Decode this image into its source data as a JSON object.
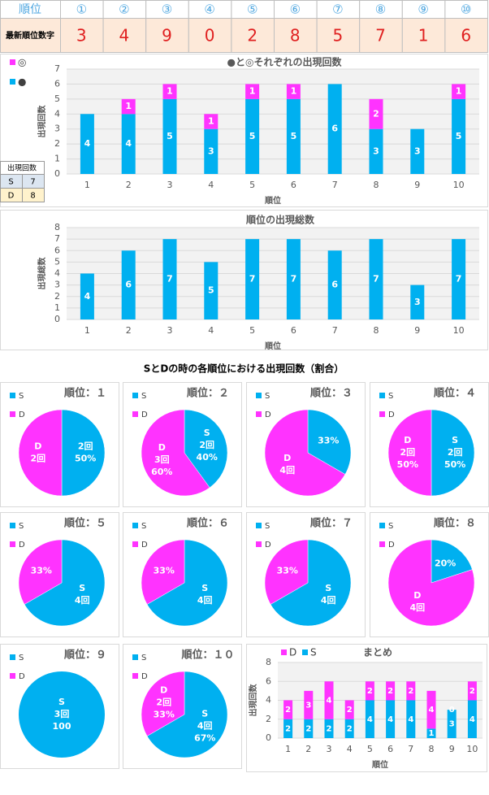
{
  "header": {
    "rank_label": "順位",
    "ranks": [
      "①",
      "②",
      "③",
      "④",
      "⑤",
      "⑥",
      "⑦",
      "⑧",
      "⑨",
      "⑩"
    ],
    "latest_label": "最新順位数字",
    "latest": [
      3,
      4,
      9,
      0,
      2,
      8,
      5,
      7,
      1,
      6
    ]
  },
  "count_table": {
    "title": "出現回数",
    "rows": [
      [
        "S",
        7
      ],
      [
        "D",
        8
      ]
    ]
  },
  "section_title": "SとDの時の各順位における出現回数（割合）",
  "chart_data": [
    {
      "type": "stacked_bar",
      "title": "●と◎それぞれの出現回数",
      "xlabel": "順位",
      "ylabel": "出現回数",
      "categories": [
        1,
        2,
        3,
        4,
        5,
        6,
        7,
        8,
        9,
        10
      ],
      "series": [
        {
          "name": "●",
          "color": "#00b0f0",
          "values": [
            4,
            4,
            5,
            3,
            5,
            5,
            6,
            3,
            3,
            5
          ]
        },
        {
          "name": "◎",
          "color": "#ff33ff",
          "values": [
            null,
            1,
            1,
            1,
            1,
            1,
            null,
            2,
            null,
            1
          ]
        }
      ],
      "ylim": [
        0,
        7
      ],
      "yticks": [
        0,
        1,
        2,
        3,
        4,
        5,
        6,
        7
      ],
      "grid": true,
      "legend": "left"
    },
    {
      "type": "bar",
      "title": "順位の出現総数",
      "xlabel": "順位",
      "ylabel": "出現総数",
      "categories": [
        1,
        2,
        3,
        4,
        5,
        6,
        7,
        8,
        9,
        10
      ],
      "color": "#00b0f0",
      "values": [
        4,
        6,
        7,
        5,
        7,
        7,
        6,
        7,
        3,
        7
      ],
      "ylim": [
        0,
        8
      ],
      "yticks": [
        0,
        1,
        2,
        3,
        4,
        5,
        6,
        7,
        8
      ],
      "grid": true
    },
    {
      "type": "pie",
      "title": "順位：１",
      "categories": [
        "S",
        "D"
      ],
      "colors": [
        "#00b0f0",
        "#ff33ff"
      ],
      "values": [
        2,
        2
      ],
      "value_labels": [
        [
          "2回",
          "50%"
        ],
        [
          "D",
          "2回"
        ]
      ]
    },
    {
      "type": "pie",
      "title": "順位：２",
      "categories": [
        "S",
        "D"
      ],
      "colors": [
        "#00b0f0",
        "#ff33ff"
      ],
      "values": [
        2,
        3
      ],
      "value_labels": [
        [
          "S",
          "2回",
          "40%"
        ],
        [
          "D",
          "3回",
          "60%"
        ]
      ]
    },
    {
      "type": "pie",
      "title": "順位：３",
      "categories": [
        "S",
        "D"
      ],
      "colors": [
        "#00b0f0",
        "#ff33ff"
      ],
      "values": [
        2,
        4
      ],
      "value_labels": [
        [
          "33%"
        ],
        [
          "D",
          "4回"
        ]
      ]
    },
    {
      "type": "pie",
      "title": "順位：４",
      "categories": [
        "S",
        "D"
      ],
      "colors": [
        "#00b0f0",
        "#ff33ff"
      ],
      "values": [
        2,
        2
      ],
      "value_labels": [
        [
          "S",
          "2回",
          "50%"
        ],
        [
          "D",
          "2回",
          "50%"
        ]
      ]
    },
    {
      "type": "pie",
      "title": "順位：５",
      "categories": [
        "S",
        "D"
      ],
      "colors": [
        "#00b0f0",
        "#ff33ff"
      ],
      "values": [
        4,
        2
      ],
      "value_labels": [
        [
          "S",
          "4回"
        ],
        [
          "33%"
        ]
      ]
    },
    {
      "type": "pie",
      "title": "順位：６",
      "categories": [
        "S",
        "D"
      ],
      "colors": [
        "#00b0f0",
        "#ff33ff"
      ],
      "values": [
        4,
        2
      ],
      "value_labels": [
        [
          "S",
          "4回"
        ],
        [
          "33%"
        ]
      ]
    },
    {
      "type": "pie",
      "title": "順位：７",
      "categories": [
        "S",
        "D"
      ],
      "colors": [
        "#00b0f0",
        "#ff33ff"
      ],
      "values": [
        4,
        2
      ],
      "value_labels": [
        [
          "S",
          "4回"
        ],
        [
          "33%"
        ]
      ]
    },
    {
      "type": "pie",
      "title": "順位：８",
      "categories": [
        "S",
        "D"
      ],
      "colors": [
        "#00b0f0",
        "#ff33ff"
      ],
      "values": [
        1,
        4
      ],
      "value_labels": [
        [
          "20%"
        ],
        [
          "D",
          "4回"
        ]
      ]
    },
    {
      "type": "pie",
      "title": "順位：９",
      "categories": [
        "S",
        "D"
      ],
      "colors": [
        "#00b0f0",
        "#ff33ff"
      ],
      "values": [
        3,
        0
      ],
      "value_labels": [
        [
          "S",
          "3回",
          "100"
        ],
        null
      ]
    },
    {
      "type": "pie",
      "title": "順位：１０",
      "categories": [
        "S",
        "D"
      ],
      "colors": [
        "#00b0f0",
        "#ff33ff"
      ],
      "values": [
        4,
        2
      ],
      "value_labels": [
        [
          "S",
          "4回",
          "67%"
        ],
        [
          "D",
          "2回",
          "33%"
        ]
      ]
    },
    {
      "type": "stacked_bar",
      "title": "まとめ",
      "xlabel": "順位",
      "ylabel": "出現回数",
      "categories": [
        1,
        2,
        3,
        4,
        5,
        6,
        7,
        8,
        9,
        10
      ],
      "series": [
        {
          "name": "S",
          "color": "#00b0f0",
          "values": [
            2,
            2,
            2,
            2,
            4,
            4,
            4,
            1,
            3,
            4
          ]
        },
        {
          "name": "D",
          "color": "#ff33ff",
          "values": [
            2,
            3,
            4,
            2,
            2,
            2,
            2,
            4,
            0,
            2
          ]
        }
      ],
      "ylim": [
        0,
        8
      ],
      "yticks": [
        0,
        2,
        4,
        6,
        8
      ],
      "grid": true,
      "legend": "top"
    }
  ]
}
